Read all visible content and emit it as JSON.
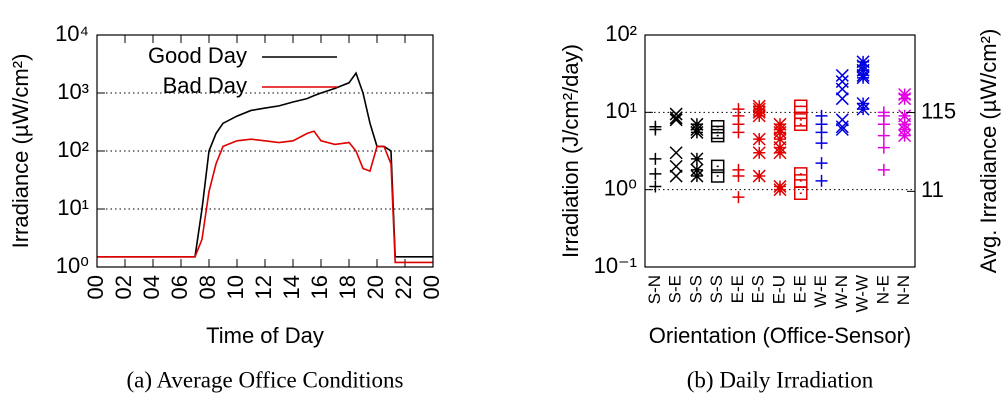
{
  "chart_data": [
    {
      "type": "line",
      "caption": "(a) Average Office Conditions",
      "xlabel": "Time of Day",
      "ylabel": "Irradiance (µW/cm²)",
      "yscale": "log",
      "ylim": [
        1,
        10000
      ],
      "yticks": [
        {
          "value": 1,
          "label": "10⁰"
        },
        {
          "value": 10,
          "label": "10¹"
        },
        {
          "value": 100,
          "label": "10²"
        },
        {
          "value": 1000,
          "label": "10³"
        },
        {
          "value": 10000,
          "label": "10⁴"
        }
      ],
      "xlim": [
        0,
        24
      ],
      "xticks": [
        {
          "value": 0,
          "label": "00"
        },
        {
          "value": 2,
          "label": "02"
        },
        {
          "value": 4,
          "label": "04"
        },
        {
          "value": 6,
          "label": "06"
        },
        {
          "value": 8,
          "label": "08"
        },
        10,
        12,
        14,
        16,
        18,
        20,
        22,
        {
          "value": 24,
          "label": "00"
        }
      ],
      "grid": "y",
      "legend": "top-left",
      "x": [
        0,
        7,
        7.5,
        8,
        8.5,
        9,
        10,
        11,
        12,
        13,
        14,
        15,
        15.5,
        16,
        17,
        18,
        18.5,
        19,
        19.5,
        20,
        20.5,
        21,
        21.3,
        24
      ],
      "series": [
        {
          "name": "Good Day",
          "color": "#000000",
          "values": [
            1.5,
            1.5,
            10,
            100,
            200,
            300,
            400,
            500,
            550,
            600,
            700,
            800,
            900,
            1000,
            1200,
            1500,
            2200,
            1000,
            300,
            120,
            120,
            100,
            1.5,
            1.5
          ]
        },
        {
          "name": "Bad Day",
          "color": "#e00000",
          "values": [
            1.5,
            1.5,
            3,
            20,
            60,
            120,
            150,
            160,
            150,
            140,
            150,
            200,
            220,
            150,
            130,
            140,
            100,
            50,
            45,
            120,
            120,
            60,
            1.2,
            1.2
          ]
        }
      ]
    },
    {
      "type": "strip",
      "caption": "(b) Daily Irradiation",
      "xlabel": "Orientation (Office-Sensor)",
      "ylabel": "Irradiation (J/cm²/day)",
      "y2label": "Avg. Irradiance (µW/cm²)",
      "yscale": "log",
      "ylim": [
        0.1,
        100
      ],
      "yticks": [
        {
          "value": 0.1,
          "label": "10⁻¹"
        },
        {
          "value": 1,
          "label": "10⁰"
        },
        {
          "value": 10,
          "label": "10¹"
        },
        {
          "value": 100,
          "label": "10²"
        }
      ],
      "y2lim": [
        1.157,
        1157
      ],
      "y2ticks": [
        11,
        115
      ],
      "grid": "y",
      "categories": [
        "S-N",
        "S-E",
        "S-S",
        "S-S",
        "E-E",
        "E-S",
        "E-U",
        "E-E",
        "W-E",
        "W-N",
        "W-W",
        "N-E",
        "N-N"
      ],
      "colors": [
        "#000000",
        "#000000",
        "#000000",
        "#000000",
        "#e00000",
        "#e00000",
        "#e00000",
        "#e00000",
        "#0000e0",
        "#0000e0",
        "#0000e0",
        "#e000e0",
        "#e000e0"
      ],
      "markers": [
        "plus",
        "cross",
        "star",
        "box",
        "plus",
        "star",
        "star",
        "box",
        "plus",
        "cross",
        "star",
        "plus",
        "star"
      ],
      "values": [
        [
          6.5,
          6,
          2.5,
          1.6,
          1.1
        ],
        [
          9.5,
          8.5,
          8,
          3,
          2,
          1.5
        ],
        [
          7,
          6,
          5.5,
          2.5,
          1.8,
          1.5
        ],
        [
          6.5,
          5.5,
          5,
          2,
          1.5
        ],
        [
          11,
          9,
          7,
          5.5,
          1.8,
          1.5,
          0.8
        ],
        [
          12,
          11,
          10,
          9,
          4.5,
          3,
          1.5
        ],
        [
          7,
          6,
          5.5,
          4.5,
          3.5,
          3,
          1.1,
          1
        ],
        [
          12,
          10,
          8,
          7,
          1.6,
          1.3,
          0.9
        ],
        [
          9,
          7,
          5.5,
          4,
          2.2,
          1.3
        ],
        [
          30,
          25,
          20,
          15,
          8,
          6.5,
          6
        ],
        [
          45,
          40,
          35,
          30,
          28,
          13,
          11
        ],
        [
          10,
          9,
          7,
          5,
          3.5,
          1.8
        ],
        [
          17,
          15,
          9,
          7,
          6,
          5
        ]
      ]
    }
  ]
}
